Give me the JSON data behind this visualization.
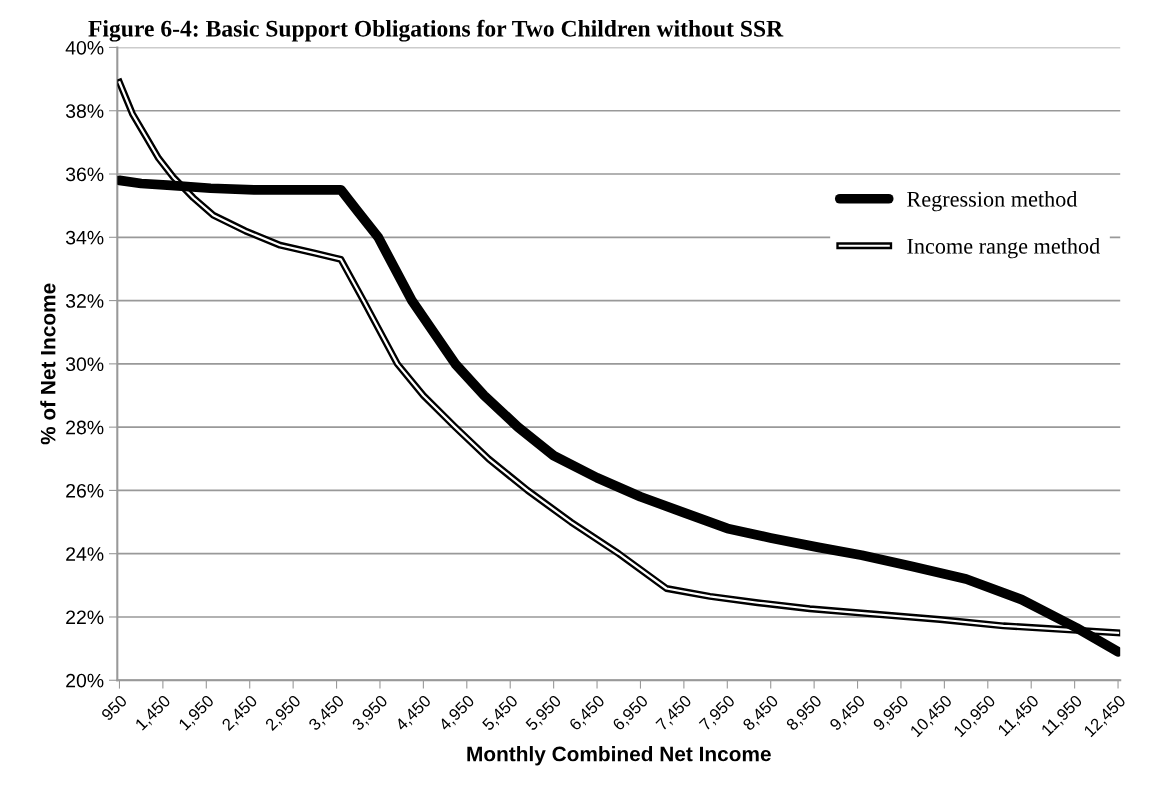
{
  "chart_data": {
    "type": "line",
    "title": "Figure 6-4: Basic Support Obligations for Two Children without SSR",
    "xlabel": "Monthly Combined Net Income",
    "ylabel": "% of Net Income",
    "xlim": [
      925,
      12475
    ],
    "xticks": [
      {
        "value": 950,
        "label": "950"
      },
      {
        "value": 1450,
        "label": "1,450"
      },
      {
        "value": 1950,
        "label": "1,950"
      },
      {
        "value": 2450,
        "label": "2,450"
      },
      {
        "value": 2950,
        "label": "2,950"
      },
      {
        "value": 3450,
        "label": "3,450"
      },
      {
        "value": 3950,
        "label": "3,950"
      },
      {
        "value": 4450,
        "label": "4,450"
      },
      {
        "value": 4950,
        "label": "4,950"
      },
      {
        "value": 5450,
        "label": "5,450"
      },
      {
        "value": 5950,
        "label": "5,950"
      },
      {
        "value": 6450,
        "label": "6,450"
      },
      {
        "value": 6950,
        "label": "6,950"
      },
      {
        "value": 7450,
        "label": "7,450"
      },
      {
        "value": 7950,
        "label": "7,950"
      },
      {
        "value": 8450,
        "label": "8,450"
      },
      {
        "value": 8950,
        "label": "8,950"
      },
      {
        "value": 9450,
        "label": "9,450"
      },
      {
        "value": 9950,
        "label": "9,950"
      },
      {
        "value": 10450,
        "label": "10,450"
      },
      {
        "value": 10950,
        "label": "10,950"
      },
      {
        "value": 11450,
        "label": "11,450"
      },
      {
        "value": 11950,
        "label": "11,950"
      },
      {
        "value": 12450,
        "label": "12,450"
      }
    ],
    "ylim": [
      20,
      40
    ],
    "yticks": [
      {
        "value": 20,
        "label": "20%"
      },
      {
        "value": 22,
        "label": "22%"
      },
      {
        "value": 24,
        "label": "24%"
      },
      {
        "value": 26,
        "label": "26%"
      },
      {
        "value": 28,
        "label": "28%"
      },
      {
        "value": 30,
        "label": "30%"
      },
      {
        "value": 32,
        "label": "32%"
      },
      {
        "value": 34,
        "label": "34%"
      },
      {
        "value": 36,
        "label": "36%"
      },
      {
        "value": 38,
        "label": "38%"
      },
      {
        "value": 40,
        "label": "40%"
      }
    ],
    "grid": "y",
    "legend": "right",
    "marker": "none",
    "series": [
      {
        "name": "Regression method",
        "color": "#000000",
        "x": [
          950,
          1200,
          1500,
          2000,
          2500,
          3000,
          3500,
          3700,
          3930,
          4317,
          4817,
          5150,
          5540,
          5950,
          6450,
          6950,
          7450,
          7950,
          8450,
          9000,
          9500,
          10070,
          10700,
          11340,
          11970,
          12450
        ],
        "values": [
          35.8,
          35.7,
          35.65,
          35.55,
          35.5,
          35.5,
          35.5,
          34.8,
          34.0,
          32.0,
          30.0,
          29.0,
          28.0,
          27.1,
          26.4,
          25.8,
          25.3,
          24.8,
          24.5,
          24.2,
          23.95,
          23.6,
          23.2,
          22.55,
          21.66,
          20.9
        ]
      },
      {
        "name": "Income range method",
        "color": "#000000",
        "x": [
          950,
          1100,
          1250,
          1400,
          1570,
          1800,
          2030,
          2400,
          2800,
          3200,
          3500,
          3760,
          4150,
          4450,
          4817,
          5200,
          5650,
          6150,
          6700,
          7250,
          7750,
          8300,
          8900,
          9600,
          10400,
          11130,
          12450
        ],
        "values": [
          38.9,
          37.9,
          37.2,
          36.5,
          35.9,
          35.25,
          34.7,
          34.2,
          33.75,
          33.5,
          33.3,
          32.0,
          30.0,
          29.0,
          28.0,
          27.0,
          26.0,
          25.0,
          24.0,
          22.9,
          22.65,
          22.45,
          22.26,
          22.1,
          21.92,
          21.72,
          21.5
        ]
      }
    ]
  }
}
